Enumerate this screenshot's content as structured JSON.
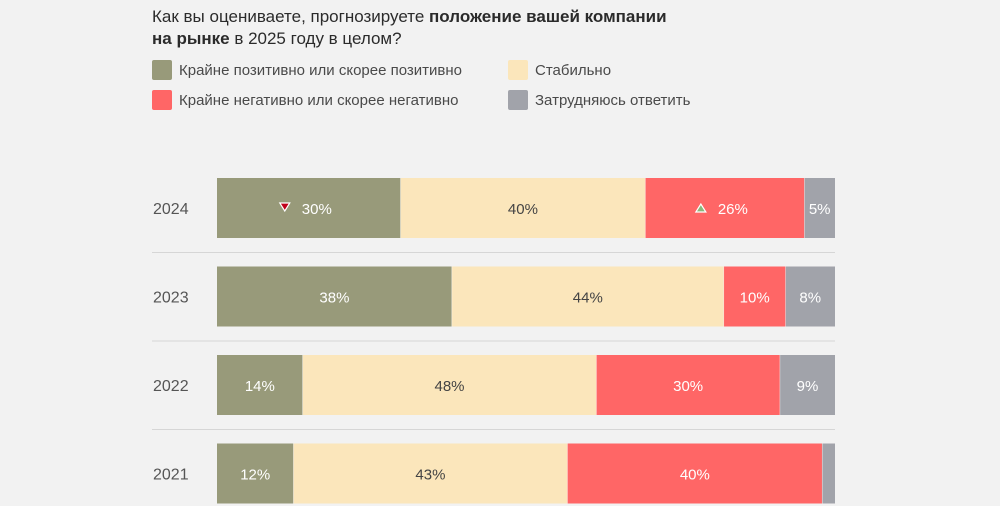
{
  "title": {
    "part1": "Как вы оцениваете, прогнозируете ",
    "bold1": "положение вашей компании",
    "bold2": "на рынке",
    "part2": " в 2025 году в целом?"
  },
  "legend": [
    {
      "label": "Крайне позитивно или скорее позитивно",
      "color": "#989a7a"
    },
    {
      "label": "Стабильно",
      "color": "#fbe6bb"
    },
    {
      "label": "Крайне негативно или скорее негативно",
      "color": "#ff6666"
    },
    {
      "label": "Затрудняюсь ответить",
      "color": "#a1a3aa"
    }
  ],
  "chart_data": {
    "type": "bar",
    "orientation": "horizontal",
    "stacked": true,
    "normalized": true,
    "categories": [
      "2024",
      "2023",
      "2022",
      "2021"
    ],
    "series": [
      {
        "name": "Крайне позитивно или скорее позитивно",
        "color": "#989a7a",
        "values": [
          30,
          38,
          14,
          12
        ],
        "labels": [
          "30%",
          "38%",
          "14%",
          "12%"
        ]
      },
      {
        "name": "Стабильно",
        "color": "#fbe6bb",
        "values": [
          40,
          44,
          48,
          43
        ],
        "labels": [
          "40%",
          "44%",
          "48%",
          "43%"
        ]
      },
      {
        "name": "Крайне негативно или скорее негативно",
        "color": "#ff6666",
        "values": [
          26,
          10,
          30,
          40
        ],
        "labels": [
          "26%",
          "10%",
          "30%",
          "40%"
        ]
      },
      {
        "name": "Затрудняюсь ответить",
        "color": "#a1a3aa",
        "values": [
          5,
          8,
          9,
          2
        ],
        "labels": [
          "5%",
          "8%",
          "9%",
          ""
        ]
      }
    ],
    "trend_markers": [
      {
        "category": "2024",
        "series": 0,
        "direction": "down",
        "color": "#c0001a"
      },
      {
        "category": "2024",
        "series": 2,
        "direction": "up",
        "color": "#8ab87a"
      }
    ]
  }
}
